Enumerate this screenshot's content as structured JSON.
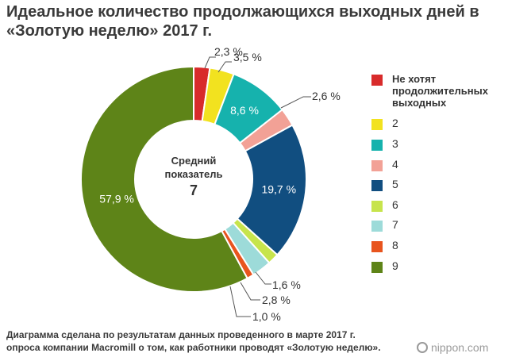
{
  "title_line1": "Идеальное количество продолжающихся выходных дней в",
  "title_line2": "«Золотую неделю» 2017 г.",
  "center_label_line1": "Средний",
  "center_label_line2": "показатель",
  "center_value": "7",
  "chart_data": {
    "type": "pie",
    "variant": "donut",
    "title": "Идеальное количество продолжающихся выходных дней в «Золотую неделю» 2017 г.",
    "unit": "%",
    "slices": [
      {
        "key": "none",
        "legend": "Не хотят продолжительных выходных",
        "value": 2.3,
        "label": "2,3 %",
        "color": "#d82b2b"
      },
      {
        "key": "2",
        "legend": "2",
        "value": 3.5,
        "label": "3,5 %",
        "color": "#f2e21f"
      },
      {
        "key": "3",
        "legend": "3",
        "value": 8.6,
        "label": "8,6 %",
        "color": "#16b2ad"
      },
      {
        "key": "4",
        "legend": "4",
        "value": 2.6,
        "label": "2,6 %",
        "color": "#f2a196"
      },
      {
        "key": "5",
        "legend": "5",
        "value": 19.7,
        "label": "19,7 %",
        "color": "#114e80"
      },
      {
        "key": "6",
        "legend": "6",
        "value": 1.6,
        "label": "1,6 %",
        "color": "#c7e44c"
      },
      {
        "key": "7",
        "legend": "7",
        "value": 2.8,
        "label": "2,8 %",
        "color": "#9ddbd9"
      },
      {
        "key": "8",
        "legend": "8",
        "value": 1.0,
        "label": "1,0 %",
        "color": "#e8541e"
      },
      {
        "key": "9",
        "legend": "9",
        "value": 57.9,
        "label": "57,9 %",
        "color": "#5e8418"
      }
    ]
  },
  "footnote_line1": "Диаграмма сделана по результатам данных проведенного в марте 2017 г.",
  "footnote_line2": "опроса компании Macromill о том, как работники проводят «Золотую неделю».",
  "brand": "nippon.com"
}
